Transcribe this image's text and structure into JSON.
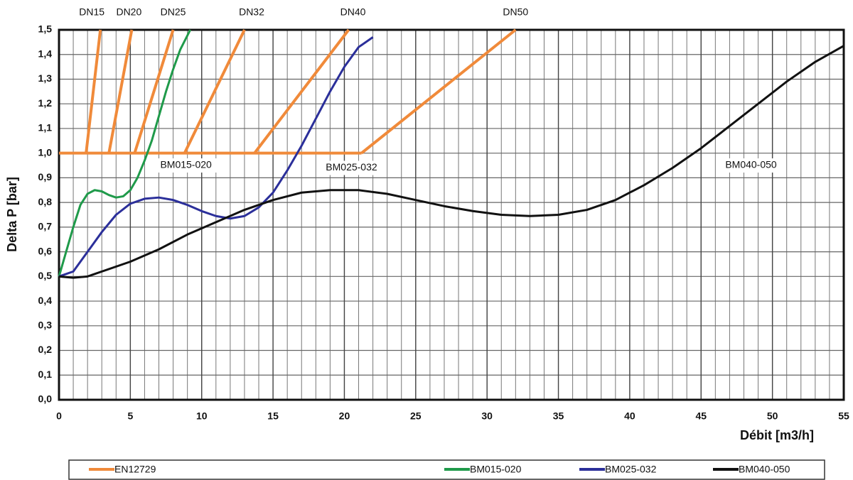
{
  "chart_data": {
    "type": "line",
    "y_label": "Delta P [bar]",
    "x_label": "Débit [m3/h]",
    "xlim": [
      0,
      55
    ],
    "ylim": [
      0,
      1.5
    ],
    "xticks": [
      0,
      5,
      10,
      15,
      20,
      25,
      30,
      35,
      40,
      45,
      50,
      55
    ],
    "xgrid": [
      1,
      2,
      3,
      4,
      5,
      6,
      7,
      8,
      9,
      10,
      11,
      12,
      13,
      14,
      15,
      16,
      17,
      18,
      19,
      20,
      21,
      22,
      23,
      24,
      25,
      26,
      27,
      28,
      29,
      30,
      31,
      32,
      33,
      34,
      35,
      36,
      37,
      38,
      39,
      40,
      41,
      42,
      43,
      44,
      45,
      46,
      47,
      48,
      49,
      50,
      51,
      52,
      53,
      54
    ],
    "yticks": [
      {
        "value": 0,
        "label": "0,0"
      },
      {
        "value": 0.1,
        "label": "0,1"
      },
      {
        "value": 0.2,
        "label": "0,2"
      },
      {
        "value": 0.3,
        "label": "0,3"
      },
      {
        "value": 0.4,
        "label": "0,4"
      },
      {
        "value": 0.5,
        "label": "0,5"
      },
      {
        "value": 0.6,
        "label": "0,6"
      },
      {
        "value": 0.7,
        "label": "0,7"
      },
      {
        "value": 0.8,
        "label": "0,8"
      },
      {
        "value": 0.9,
        "label": "0,9"
      },
      {
        "value": 1.0,
        "label": "1,0"
      },
      {
        "value": 1.1,
        "label": "1,1"
      },
      {
        "value": 1.2,
        "label": "1,2"
      },
      {
        "value": 1.3,
        "label": "1,3"
      },
      {
        "value": 1.4,
        "label": "1,4"
      },
      {
        "value": 1.5,
        "label": "1,5"
      }
    ],
    "grid": true,
    "series": [
      {
        "name": "EN12729",
        "color": "#f08a3a",
        "width": 4,
        "x": [
          0,
          21.2,
          null,
          1.9,
          2.9,
          null,
          3.5,
          5.1,
          null,
          5.3,
          8.0,
          null,
          8.8,
          13.0,
          null,
          13.7,
          20.3,
          null,
          21.2,
          32.0
        ],
        "values": [
          1.0,
          1.0,
          null,
          1.0,
          1.5,
          null,
          1.0,
          1.5,
          null,
          1.0,
          1.5,
          null,
          1.0,
          1.5,
          null,
          1.0,
          1.5,
          null,
          1.0,
          1.5
        ]
      },
      {
        "name": "BM015-020",
        "color": "#1f9a4a",
        "width": 3,
        "x": [
          0,
          0.5,
          1,
          1.5,
          2,
          2.5,
          3,
          3.5,
          4,
          4.5,
          5,
          5.5,
          6,
          6.5,
          7,
          7.5,
          8,
          8.5,
          9.2
        ],
        "values": [
          0.5,
          0.6,
          0.7,
          0.79,
          0.835,
          0.85,
          0.845,
          0.83,
          0.82,
          0.825,
          0.85,
          0.9,
          0.97,
          1.05,
          1.15,
          1.25,
          1.34,
          1.42,
          1.5
        ]
      },
      {
        "name": "BM025-032",
        "color": "#2b2f9a",
        "width": 3,
        "x": [
          0,
          1,
          2,
          3,
          4,
          5,
          6,
          7,
          8,
          9,
          10,
          11,
          12,
          13,
          14,
          15,
          16,
          17,
          18,
          19,
          20,
          21,
          22
        ],
        "values": [
          0.5,
          0.52,
          0.6,
          0.68,
          0.75,
          0.795,
          0.815,
          0.82,
          0.81,
          0.79,
          0.765,
          0.745,
          0.735,
          0.745,
          0.78,
          0.84,
          0.93,
          1.03,
          1.14,
          1.25,
          1.35,
          1.43,
          1.47
        ]
      },
      {
        "name": "BM040-050",
        "color": "#111111",
        "width": 3,
        "x": [
          0,
          1,
          2,
          3,
          5,
          7,
          9,
          11,
          13,
          15,
          17,
          19,
          21,
          23,
          25,
          27,
          29,
          31,
          33,
          35,
          37,
          39,
          41,
          43,
          45,
          47,
          49,
          51,
          53,
          55
        ],
        "values": [
          0.5,
          0.495,
          0.5,
          0.52,
          0.56,
          0.61,
          0.67,
          0.72,
          0.77,
          0.81,
          0.84,
          0.85,
          0.85,
          0.835,
          0.81,
          0.785,
          0.765,
          0.75,
          0.745,
          0.75,
          0.77,
          0.81,
          0.87,
          0.94,
          1.02,
          1.11,
          1.2,
          1.29,
          1.37,
          1.435
        ]
      }
    ],
    "top_annotations": [
      {
        "text": "DN15",
        "x": 2.3
      },
      {
        "text": "DN20",
        "x": 4.9
      },
      {
        "text": "DN25",
        "x": 8.0
      },
      {
        "text": "DN32",
        "x": 13.5
      },
      {
        "text": "DN40",
        "x": 20.6
      },
      {
        "text": "DN50",
        "x": 32.0
      }
    ],
    "curve_annotations": [
      {
        "text": "BM015-020",
        "x": 8.9,
        "y": 0.95
      },
      {
        "text": "BM025-032",
        "x": 20.5,
        "y": 0.94
      },
      {
        "text": "BM040-050",
        "x": 48.5,
        "y": 0.95
      }
    ]
  }
}
